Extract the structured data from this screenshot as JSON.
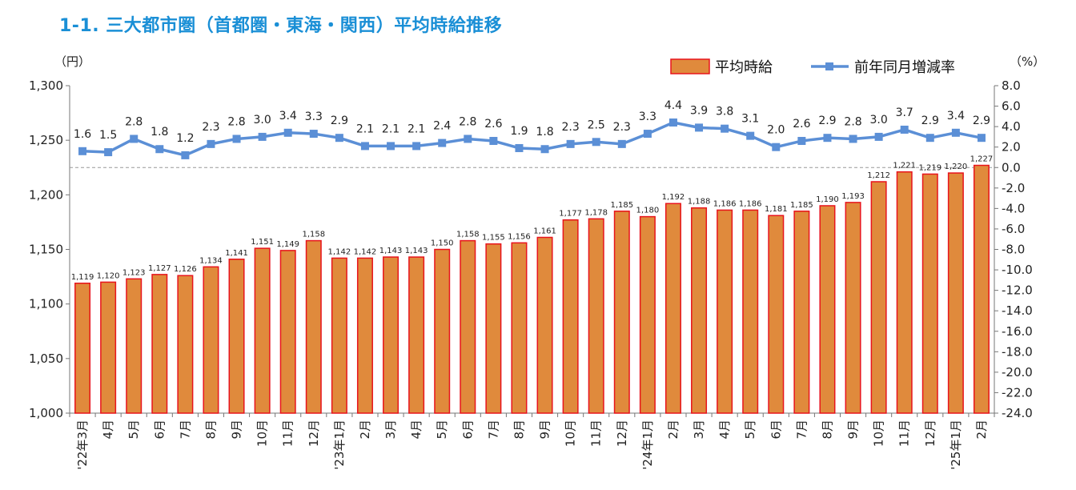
{
  "title": "1-1. 三大都市圏（首都圏・東海・関西）平均時給推移",
  "chart_data": {
    "type": "bar+line",
    "categories": [
      "'22年3月",
      "4月",
      "5月",
      "6月",
      "7月",
      "8月",
      "9月",
      "10月",
      "11月",
      "12月",
      "'23年1月",
      "2月",
      "3月",
      "4月",
      "5月",
      "6月",
      "7月",
      "8月",
      "9月",
      "10月",
      "11月",
      "12月",
      "'24年1月",
      "2月",
      "3月",
      "4月",
      "5月",
      "6月",
      "7月",
      "8月",
      "9月",
      "10月",
      "11月",
      "12月",
      "'25年1月",
      "2月"
    ],
    "series": [
      {
        "name": "平均時給",
        "type": "bar",
        "axis": "left",
        "color": "#e08a3c",
        "edge_color": "#e8141c",
        "values": [
          1119,
          1120,
          1123,
          1127,
          1126,
          1134,
          1141,
          1151,
          1149,
          1158,
          1142,
          1142,
          1143,
          1143,
          1150,
          1158,
          1155,
          1156,
          1161,
          1177,
          1178,
          1185,
          1180,
          1192,
          1188,
          1186,
          1186,
          1181,
          1185,
          1190,
          1193,
          1212,
          1221,
          1219,
          1220,
          1227
        ],
        "labels": [
          "1,119",
          "1,120",
          "1,123",
          "1,127",
          "1,126",
          "1,134",
          "1,141",
          "1,151",
          "1,149",
          "1,158",
          "1,142",
          "1,142",
          "1,143",
          "1,143",
          "1,150",
          "1,158",
          "1,155",
          "1,156",
          "1,161",
          "1,177",
          "1,178",
          "1,185",
          "1,180",
          "1,192",
          "1,188",
          "1,186",
          "1,186",
          "1,181",
          "1,185",
          "1,190",
          "1,193",
          "1,212",
          "1,221",
          "1,219",
          "1,220",
          "1,227"
        ]
      },
      {
        "name": "前年同月増減率",
        "type": "line",
        "axis": "right",
        "color": "#5b8fd6",
        "values": [
          1.6,
          1.5,
          2.8,
          1.8,
          1.2,
          2.3,
          2.8,
          3.0,
          3.4,
          3.3,
          2.9,
          2.1,
          2.1,
          2.1,
          2.4,
          2.8,
          2.6,
          1.9,
          1.8,
          2.3,
          2.5,
          2.3,
          3.3,
          4.4,
          3.9,
          3.8,
          3.1,
          2.0,
          2.6,
          2.9,
          2.8,
          3.0,
          3.7,
          2.9,
          3.4,
          2.9
        ],
        "labels": [
          "1.6",
          "1.5",
          "2.8",
          "1.8",
          "1.2",
          "2.3",
          "2.8",
          "3.0",
          "3.4",
          "3.3",
          "2.9",
          "2.1",
          "2.1",
          "2.1",
          "2.4",
          "2.8",
          "2.6",
          "1.9",
          "1.8",
          "2.3",
          "2.5",
          "2.3",
          "3.3",
          "4.4",
          "3.9",
          "3.8",
          "3.1",
          "2.0",
          "2.6",
          "2.9",
          "2.8",
          "3.0",
          "3.7",
          "2.9",
          "3.4",
          "2.9"
        ]
      }
    ],
    "y_left": {
      "unit": "（円）",
      "min": 1000,
      "max": 1300,
      "ticks": [
        "1,000",
        "1,050",
        "1,100",
        "1,150",
        "1,200",
        "1,250",
        "1,300"
      ],
      "tick_values": [
        1000,
        1050,
        1100,
        1150,
        1200,
        1250,
        1300
      ]
    },
    "y_right": {
      "unit": "（%）",
      "min": -24,
      "max": 8,
      "ticks": [
        "-24.0",
        "-22.0",
        "-20.0",
        "-18.0",
        "-16.0",
        "-14.0",
        "-12.0",
        "-10.0",
        "-8.0",
        "-6.0",
        "-4.0",
        "-2.0",
        "0.0",
        "2.0",
        "4.0",
        "6.0",
        "8.0"
      ],
      "tick_values": [
        -24,
        -22,
        -20,
        -18,
        -16,
        -14,
        -12,
        -10,
        -8,
        -6,
        -4,
        -2,
        0,
        2,
        4,
        6,
        8
      ]
    },
    "reference_line": {
      "axis": "right",
      "value": 0,
      "style": "dashed"
    },
    "legend": {
      "position": "top-right"
    },
    "grid": false
  }
}
